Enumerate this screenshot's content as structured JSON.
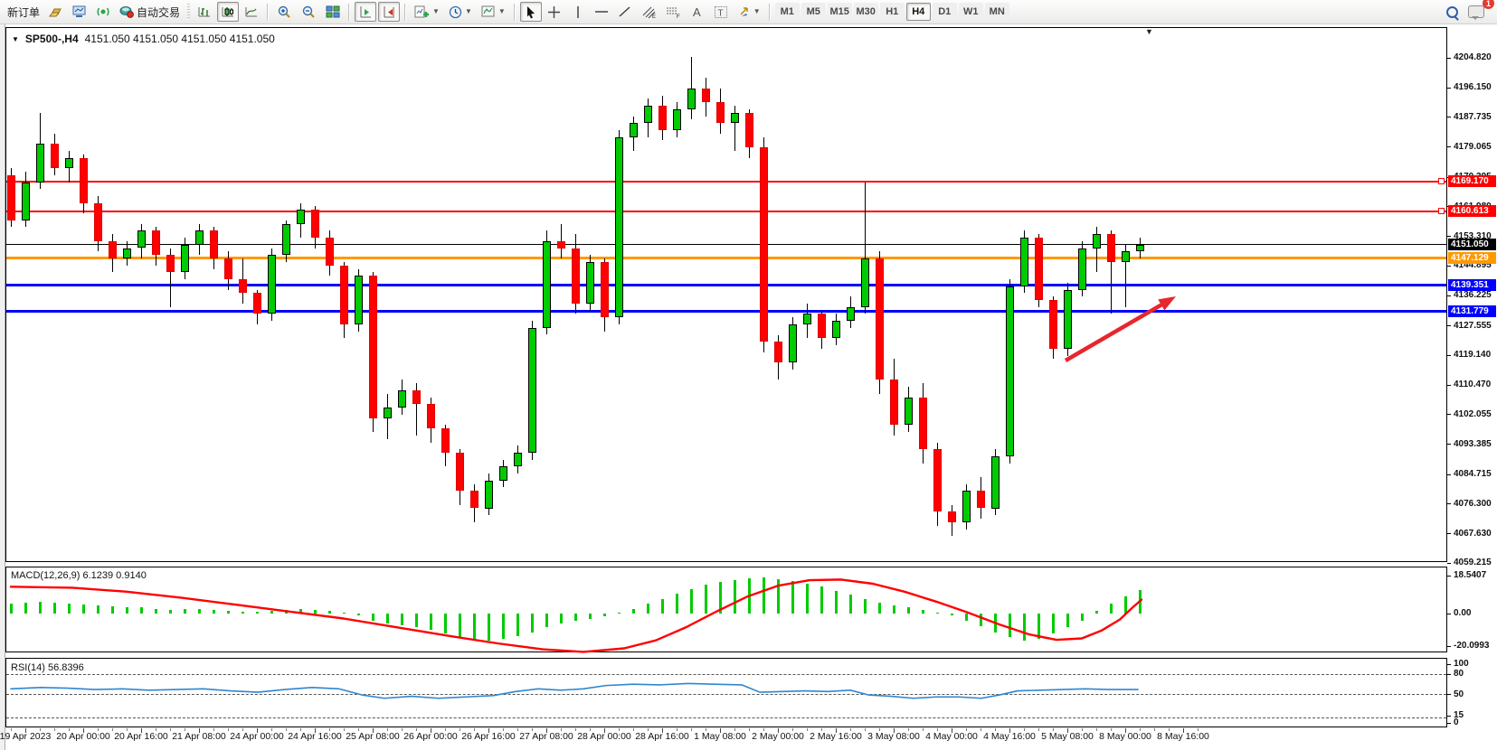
{
  "toolbar": {
    "new_order": "新订单",
    "auto_trading": "自动交易",
    "timeframes": [
      "M1",
      "M5",
      "M15",
      "M30",
      "H1",
      "H4",
      "D1",
      "W1",
      "MN"
    ],
    "active_timeframe": "H4",
    "chat_badge": "1"
  },
  "chart": {
    "title": "SP500-,H4",
    "ohlc": "4151.050 4151.050 4151.050 4151.050",
    "up_color": "#00CB00",
    "down_color": "#FF0000",
    "wick_color": "#000000",
    "price_ticks": [
      "4204.820",
      "4196.150",
      "4187.735",
      "4179.065",
      "4170.395",
      "4161.980",
      "4153.310",
      "4144.895",
      "4136.225",
      "4127.555",
      "4119.140",
      "4110.470",
      "4102.055",
      "4093.385",
      "4084.715",
      "4076.300",
      "4067.630",
      "4059.215"
    ],
    "levels": [
      {
        "label": "4169.170",
        "price": 4169.17,
        "color": "#FF0000",
        "thickness": 2,
        "handle": true
      },
      {
        "label": "4160.613",
        "price": 4160.613,
        "color": "#FF0000",
        "thickness": 2,
        "handle": true
      },
      {
        "label": "4151.050",
        "price": 4151.05,
        "color": "#000000",
        "thickness": 1,
        "handle": false
      },
      {
        "label": "4147.129",
        "price": 4147.129,
        "color": "#FF9900",
        "thickness": 3,
        "handle": false
      },
      {
        "label": "4139.351",
        "price": 4139.351,
        "color": "#0000FF",
        "thickness": 3,
        "handle": false
      },
      {
        "label": "4131.779",
        "price": 4131.779,
        "color": "#0000FF",
        "thickness": 3,
        "handle": false
      }
    ],
    "time_labels": [
      "19 Apr 2023",
      "20 Apr 00:00",
      "20 Apr 16:00",
      "21 Apr 08:00",
      "24 Apr 00:00",
      "24 Apr 16:00",
      "25 Apr 08:00",
      "26 Apr 00:00",
      "26 Apr 16:00",
      "27 Apr 08:00",
      "28 Apr 00:00",
      "28 Apr 16:00",
      "1 May 08:00",
      "2 May 00:00",
      "2 May 16:00",
      "3 May 08:00",
      "4 May 00:00",
      "4 May 16:00",
      "5 May 08:00",
      "8 May 00:00",
      "8 May 16:00"
    ],
    "candles": [
      [
        4171,
        4173,
        4156,
        4158
      ],
      [
        4158,
        4172,
        4156,
        4169
      ],
      [
        4169,
        4189,
        4167,
        4180
      ],
      [
        4180,
        4183,
        4171,
        4173
      ],
      [
        4173,
        4178,
        4169,
        4176
      ],
      [
        4176,
        4177,
        4160,
        4163
      ],
      [
        4163,
        4165,
        4149,
        4152
      ],
      [
        4152,
        4154,
        4143,
        4147
      ],
      [
        4147,
        4152,
        4145,
        4150
      ],
      [
        4150,
        4157,
        4147,
        4155
      ],
      [
        4155,
        4156,
        4145,
        4148
      ],
      [
        4148,
        4150,
        4133,
        4143
      ],
      [
        4143,
        4153,
        4141,
        4151
      ],
      [
        4151,
        4157,
        4148,
        4155
      ],
      [
        4155,
        4156,
        4144,
        4147
      ],
      [
        4147,
        4149,
        4138,
        4141
      ],
      [
        4141,
        4147,
        4134,
        4137
      ],
      [
        4137,
        4138,
        4128,
        4131
      ],
      [
        4131,
        4150,
        4129,
        4148
      ],
      [
        4148,
        4158,
        4146,
        4157
      ],
      [
        4157,
        4163,
        4153,
        4161
      ],
      [
        4161,
        4162,
        4150,
        4153
      ],
      [
        4153,
        4155,
        4142,
        4145
      ],
      [
        4145,
        4146,
        4124,
        4128
      ],
      [
        4128,
        4144,
        4126,
        4142
      ],
      [
        4142,
        4143,
        4097,
        4101
      ],
      [
        4101,
        4108,
        4095,
        4104
      ],
      [
        4104,
        4112,
        4102,
        4109
      ],
      [
        4109,
        4111,
        4096,
        4105
      ],
      [
        4105,
        4107,
        4094,
        4098
      ],
      [
        4098,
        4099,
        4087,
        4091
      ],
      [
        4091,
        4092,
        4076,
        4080
      ],
      [
        4080,
        4082,
        4071,
        4075
      ],
      [
        4075,
        4085,
        4073,
        4083
      ],
      [
        4083,
        4089,
        4081,
        4087
      ],
      [
        4087,
        4093,
        4085,
        4091
      ],
      [
        4091,
        4129,
        4089,
        4127
      ],
      [
        4127,
        4155,
        4125,
        4152
      ],
      [
        4152,
        4157,
        4147,
        4150
      ],
      [
        4150,
        4154,
        4131,
        4134
      ],
      [
        4134,
        4148,
        4132,
        4146
      ],
      [
        4146,
        4147,
        4126,
        4130
      ],
      [
        4130,
        4184,
        4128,
        4182
      ],
      [
        4182,
        4188,
        4178,
        4186
      ],
      [
        4186,
        4193,
        4182,
        4191
      ],
      [
        4191,
        4194,
        4181,
        4184
      ],
      [
        4184,
        4192,
        4182,
        4190
      ],
      [
        4190,
        4205,
        4187,
        4196
      ],
      [
        4196,
        4199,
        4188,
        4192
      ],
      [
        4192,
        4196,
        4183,
        4186
      ],
      [
        4186,
        4191,
        4178,
        4189
      ],
      [
        4189,
        4190,
        4176,
        4179
      ],
      [
        4179,
        4182,
        4120,
        4123
      ],
      [
        4123,
        4125,
        4112,
        4117
      ],
      [
        4117,
        4130,
        4115,
        4128
      ],
      [
        4128,
        4134,
        4124,
        4131
      ],
      [
        4131,
        4132,
        4121,
        4124
      ],
      [
        4124,
        4131,
        4122,
        4129
      ],
      [
        4129,
        4136,
        4127,
        4133
      ],
      [
        4133,
        4169,
        4131,
        4147
      ],
      [
        4147,
        4149,
        4108,
        4112
      ],
      [
        4112,
        4118,
        4096,
        4099
      ],
      [
        4099,
        4110,
        4097,
        4107
      ],
      [
        4107,
        4111,
        4088,
        4092
      ],
      [
        4092,
        4094,
        4070,
        4074
      ],
      [
        4074,
        4076,
        4067,
        4071
      ],
      [
        4071,
        4082,
        4069,
        4080
      ],
      [
        4080,
        4084,
        4072,
        4075
      ],
      [
        4075,
        4092,
        4073,
        4090
      ],
      [
        4090,
        4141,
        4088,
        4139
      ],
      [
        4139,
        4155,
        4137,
        4153
      ],
      [
        4153,
        4154,
        4133,
        4135
      ],
      [
        4135,
        4136,
        4118,
        4121
      ],
      [
        4121,
        4140,
        4119,
        4138
      ],
      [
        4138,
        4152,
        4136,
        4150
      ],
      [
        4150,
        4156,
        4143,
        4154
      ],
      [
        4154,
        4155,
        4131,
        4146
      ],
      [
        4146,
        4151,
        4133,
        4149
      ],
      [
        4149,
        4153,
        4147,
        4151
      ]
    ]
  },
  "macd": {
    "label": "MACD(12,26,9) 6.1239 0.9140",
    "axis_ticks": [
      "18.5407",
      "0.00",
      "-20.0993"
    ],
    "histogram_color": "#00CB00",
    "signal_color": "#FF0000",
    "histogram": [
      5,
      5.5,
      6,
      5.5,
      5,
      4.5,
      4,
      3.5,
      3,
      3,
      2.5,
      2,
      2.5,
      2.5,
      2,
      1.5,
      1,
      0.8,
      1.2,
      1.8,
      2.2,
      2,
      1.5,
      0.5,
      -1,
      -3.5,
      -5,
      -6,
      -7,
      -8,
      -10,
      -12,
      -13,
      -13.5,
      -12.5,
      -11.5,
      -9.5,
      -7,
      -5,
      -3.5,
      -2.5,
      -1.5,
      0.5,
      2.5,
      5,
      7.5,
      10,
      12.5,
      14.5,
      16,
      17,
      17.8,
      18.2,
      17.5,
      16.5,
      15,
      13.5,
      11.5,
      9.5,
      7.5,
      5.5,
      4,
      3,
      2,
      0.5,
      -1,
      -3.5,
      -6.5,
      -9.5,
      -12,
      -13.5,
      -12.5,
      -10,
      -7,
      -3.5,
      1.5,
      5,
      8.5,
      12
    ],
    "signal": [
      [
        12,
        13.5
      ],
      [
        80,
        13
      ],
      [
        140,
        11
      ],
      [
        200,
        8
      ],
      [
        260,
        4.5
      ],
      [
        320,
        1
      ],
      [
        380,
        -2.5
      ],
      [
        440,
        -7
      ],
      [
        500,
        -11.5
      ],
      [
        550,
        -15
      ],
      [
        600,
        -18
      ],
      [
        645,
        -19.3
      ],
      [
        690,
        -17.5
      ],
      [
        725,
        -13.5
      ],
      [
        758,
        -7
      ],
      [
        792,
        1
      ],
      [
        826,
        8.5
      ],
      [
        860,
        14
      ],
      [
        895,
        16.8
      ],
      [
        930,
        17.1
      ],
      [
        965,
        15
      ],
      [
        1000,
        11
      ],
      [
        1035,
        6
      ],
      [
        1070,
        0.5
      ],
      [
        1105,
        -5.5
      ],
      [
        1138,
        -10.5
      ],
      [
        1168,
        -13.2
      ],
      [
        1196,
        -12.5
      ],
      [
        1218,
        -8.5
      ],
      [
        1238,
        -3
      ],
      [
        1252,
        3
      ],
      [
        1262,
        7
      ]
    ]
  },
  "rsi": {
    "label": "RSI(14) 56.8396",
    "axis_ticks": [
      "100",
      "80",
      "50",
      "15",
      "0"
    ],
    "level_lines": [
      80,
      50,
      15
    ],
    "line_color": "#2E86D0",
    "points": [
      [
        12,
        58
      ],
      [
        45,
        60
      ],
      [
        75,
        59
      ],
      [
        105,
        57
      ],
      [
        135,
        58
      ],
      [
        165,
        56
      ],
      [
        195,
        57
      ],
      [
        225,
        58
      ],
      [
        255,
        55
      ],
      [
        285,
        53
      ],
      [
        315,
        57
      ],
      [
        345,
        60
      ],
      [
        375,
        58
      ],
      [
        400,
        49
      ],
      [
        425,
        44
      ],
      [
        455,
        47
      ],
      [
        485,
        44
      ],
      [
        515,
        46
      ],
      [
        545,
        48
      ],
      [
        570,
        54
      ],
      [
        595,
        58
      ],
      [
        620,
        56
      ],
      [
        645,
        58
      ],
      [
        670,
        63
      ],
      [
        700,
        65
      ],
      [
        730,
        64
      ],
      [
        760,
        66
      ],
      [
        790,
        65
      ],
      [
        820,
        64
      ],
      [
        840,
        53
      ],
      [
        865,
        54
      ],
      [
        890,
        55
      ],
      [
        915,
        54
      ],
      [
        940,
        56
      ],
      [
        960,
        49
      ],
      [
        985,
        47
      ],
      [
        1010,
        44
      ],
      [
        1035,
        46
      ],
      [
        1060,
        46
      ],
      [
        1085,
        44
      ],
      [
        1105,
        49
      ],
      [
        1125,
        55
      ],
      [
        1150,
        56
      ],
      [
        1175,
        57
      ],
      [
        1200,
        58
      ],
      [
        1225,
        57
      ],
      [
        1250,
        57
      ],
      [
        1258,
        57
      ]
    ]
  },
  "annotation": {
    "arrow_color": "#E8262D"
  }
}
